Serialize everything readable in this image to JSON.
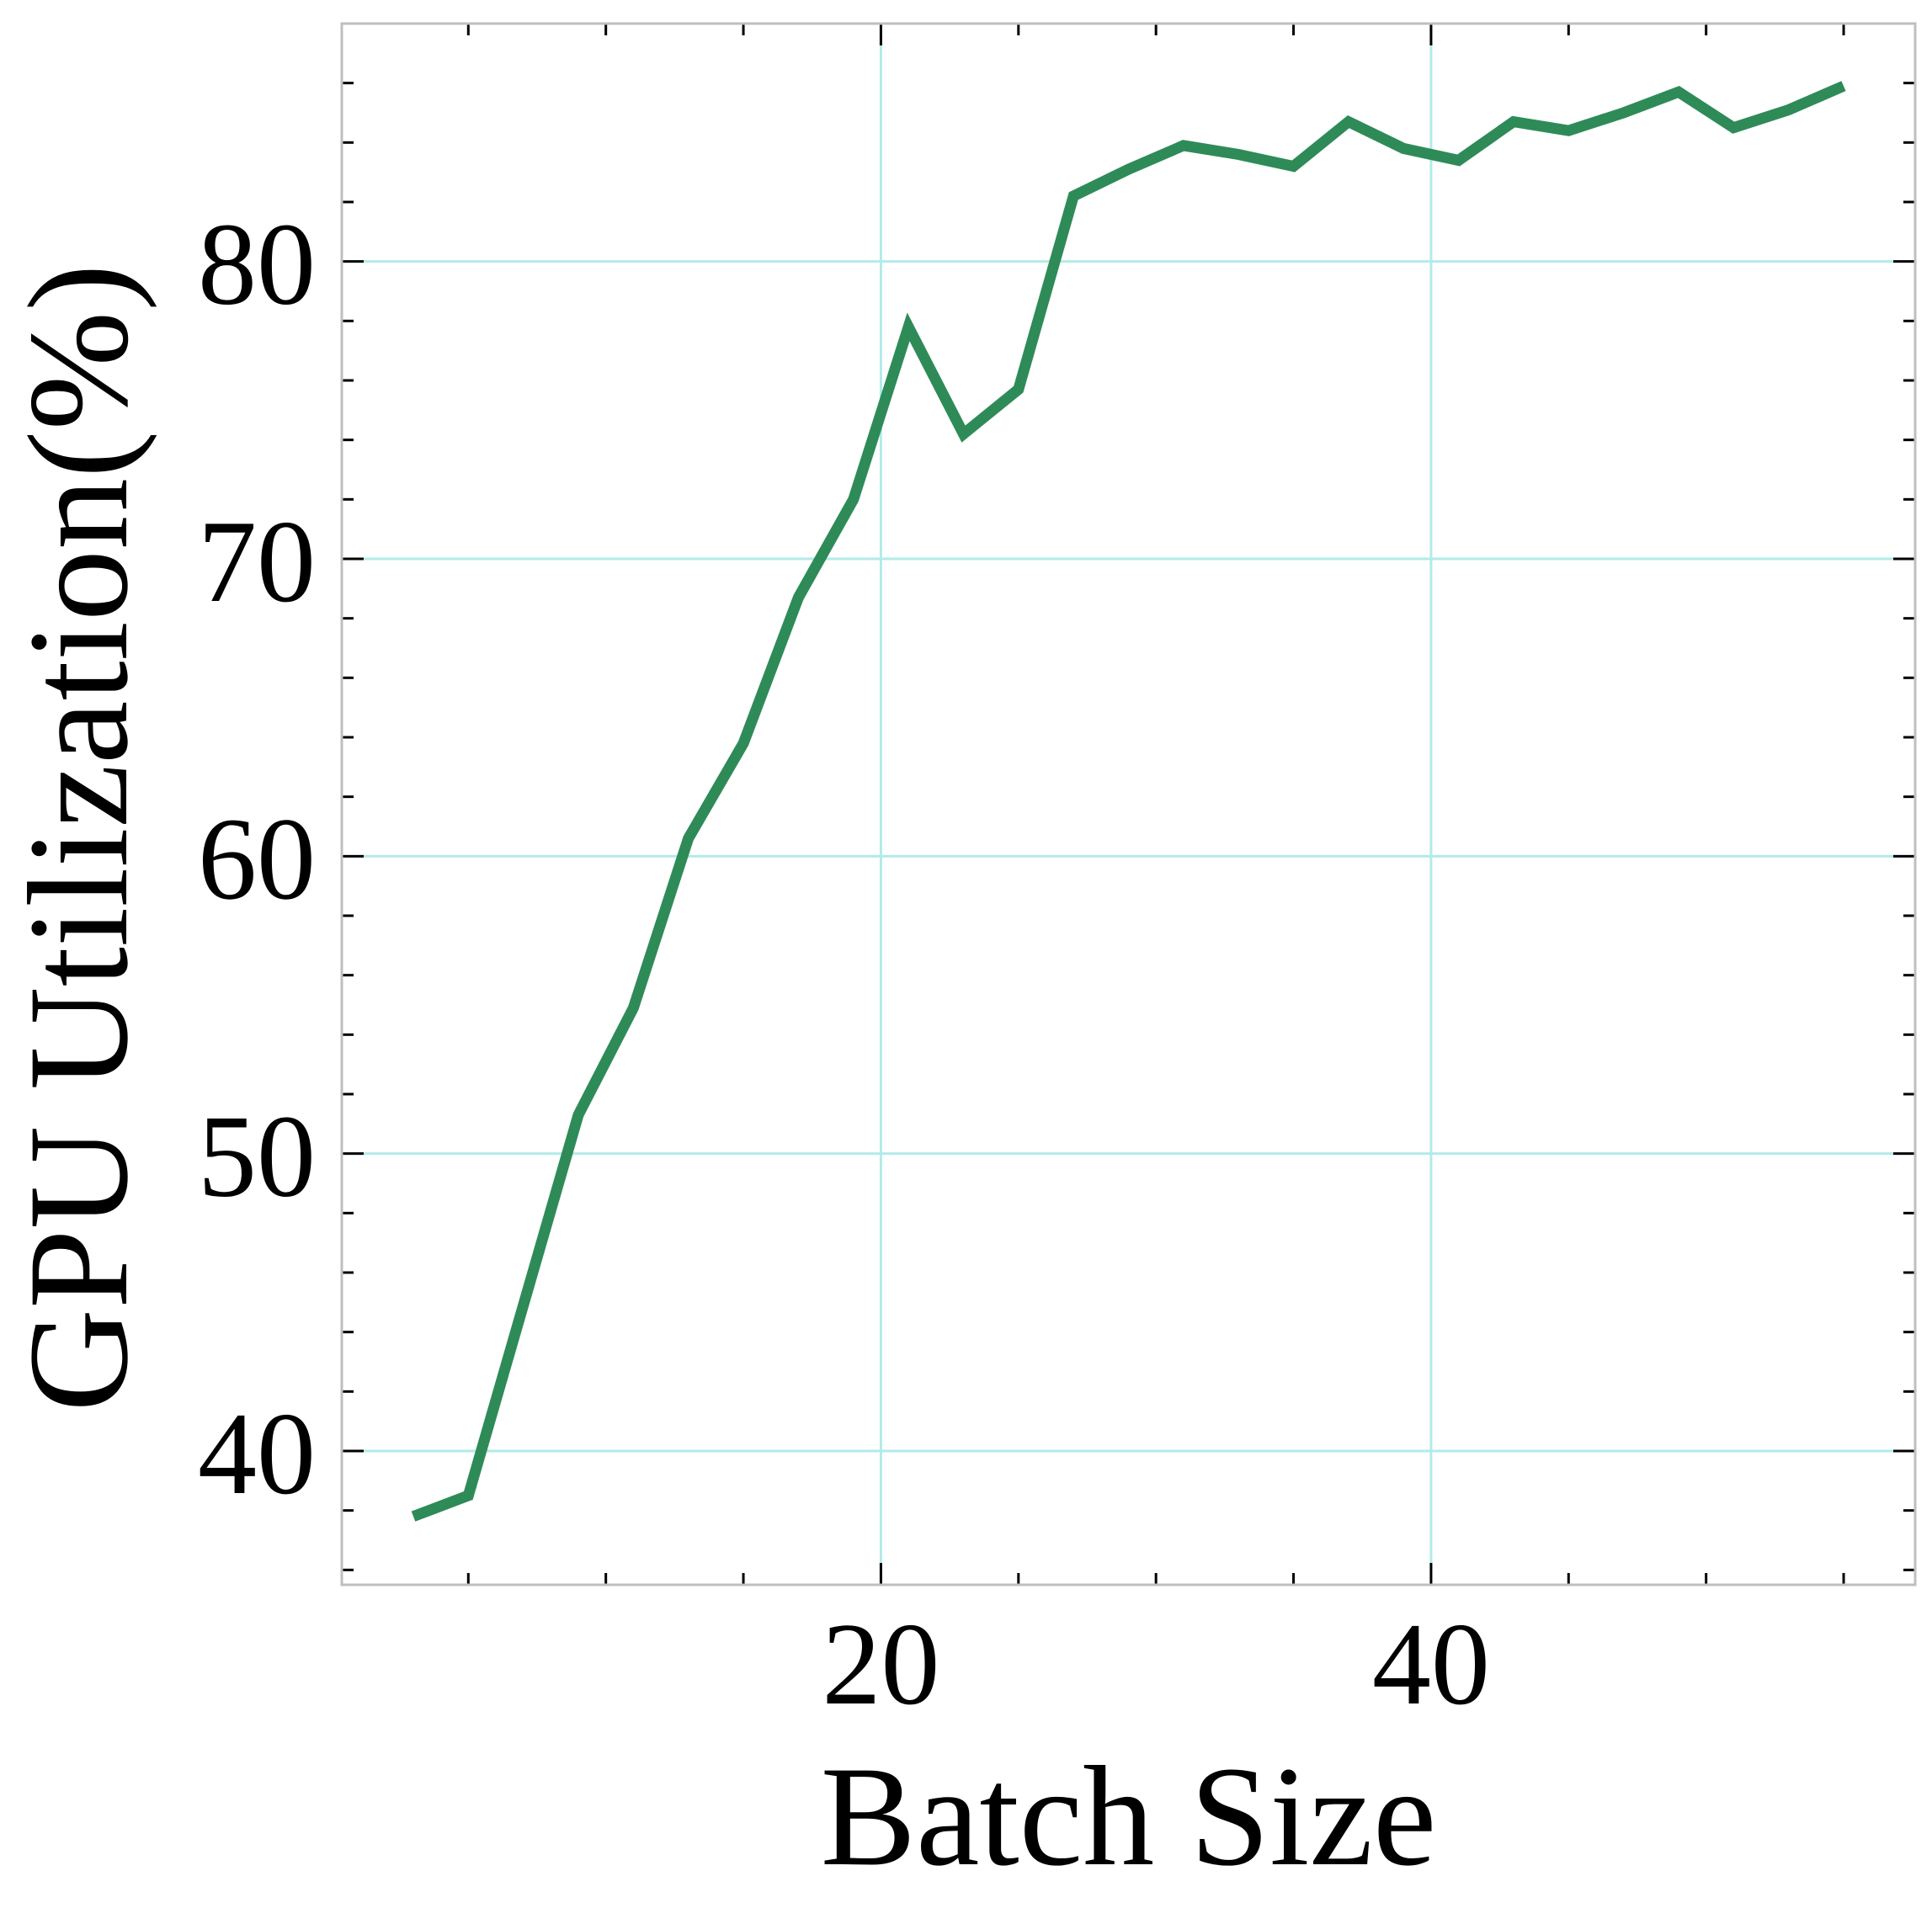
{
  "chart_data": {
    "type": "line",
    "title": "",
    "xlabel": "Batch Size",
    "ylabel": "GPU Utilization(%)",
    "xlim": [
      0.4,
      57.6
    ],
    "ylim": [
      35.5,
      88
    ],
    "x_ticks": [
      20,
      40
    ],
    "x_tick_labels": [
      "20",
      "40"
    ],
    "y_ticks": [
      40,
      50,
      60,
      70,
      80
    ],
    "y_tick_labels": [
      "40",
      "50",
      "60",
      "70",
      "80"
    ],
    "grid": true,
    "legend": "none",
    "series": [
      {
        "color": "#2e8b57",
        "x": [
          3,
          5,
          9,
          11,
          13,
          15,
          17,
          19,
          21,
          23,
          25,
          27,
          29,
          31,
          33,
          35,
          37,
          39,
          41,
          43,
          45,
          47,
          49,
          51,
          53,
          55
        ],
        "y": [
          37.8,
          38.5,
          51.3,
          54.9,
          60.6,
          63.8,
          68.7,
          72.0,
          77.8,
          74.2,
          75.7,
          82.2,
          83.1,
          83.9,
          83.6,
          83.2,
          84.7,
          83.8,
          83.4,
          84.7,
          84.4,
          85.0,
          85.7,
          84.5,
          85.1,
          85.9
        ]
      }
    ],
    "colors": {
      "line": "#2e8b57",
      "grid": "#b2ebe9",
      "frame": "#bfbfbf",
      "ticks": "#000000"
    }
  }
}
